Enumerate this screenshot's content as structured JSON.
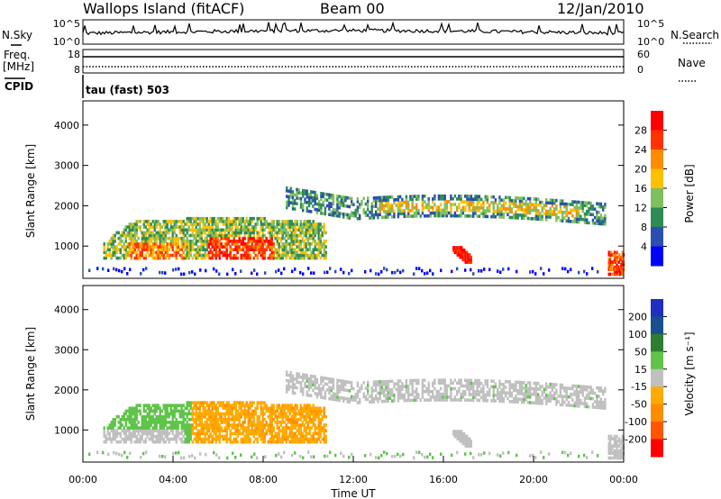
{
  "header": {
    "station": "Wallops Island (fitACF)",
    "beam": "Beam 00",
    "date": "12/Jan/2010"
  },
  "strip_panels": {
    "nsky": {
      "label": "N.Sky",
      "tick_top": "10^5",
      "tick_bottom": "10^0",
      "right_label": "N.Search",
      "right_tick_top": "10^5",
      "right_tick_bottom": "10^0"
    },
    "freq": {
      "label_line1": "Freq.",
      "label_line2": "[MHz]",
      "tick_top": "18",
      "tick_bottom": "8",
      "right_label": "Nave",
      "right_tick_top": "60",
      "right_tick_bottom": "0"
    },
    "cpid": {
      "label": "CPID",
      "value": "tau (fast) 503"
    }
  },
  "colors": {
    "power": [
      "#0000ff",
      "#2a4fb0",
      "#2e8b57",
      "#7fbf5f",
      "#ffc000",
      "#ff8c00",
      "#ff3300",
      "#ff0000"
    ],
    "velocity": [
      "#ff0000",
      "#ff5500",
      "#ff8c00",
      "#ffaa00",
      "#c0c0c0",
      "#5fc44a",
      "#2e7d32",
      "#1a4f8c",
      "#1f2fbf"
    ],
    "ground_scatter": "#c0c0c0"
  },
  "chart_data": [
    {
      "type": "heatmap",
      "name": "power",
      "ylabel": "Slant Range [km]",
      "ylim": [
        200,
        4600
      ],
      "yticks": [
        "1000",
        "2000",
        "3000",
        "4000"
      ],
      "xlim": [
        0,
        24
      ],
      "colorbar": {
        "label": "Power [dB]",
        "range": [
          0,
          32
        ],
        "ticks": [
          "4",
          "8",
          "12",
          "16",
          "20",
          "24",
          "28"
        ]
      },
      "features": [
        {
          "t": [
            0.9,
            10.8
          ],
          "range": [
            700,
            1700
          ],
          "peak_db": 30
        },
        {
          "t": [
            9.0,
            23.2
          ],
          "range": [
            1300,
            2600
          ],
          "peak_db": 16
        },
        {
          "t": [
            16.4,
            17.2
          ],
          "range": [
            600,
            1000
          ],
          "peak_db": 28
        }
      ]
    },
    {
      "type": "heatmap",
      "name": "velocity",
      "ylabel": "Slant Range [km]",
      "ylim": [
        200,
        4600
      ],
      "yticks": [
        "1000",
        "2000",
        "3000",
        "4000"
      ],
      "xlim": [
        0,
        24
      ],
      "xticks": [
        "00:00",
        "04:00",
        "08:00",
        "12:00",
        "16:00",
        "20:00",
        "00:00"
      ],
      "xlabel": "Time UT",
      "colorbar": {
        "label": "Velocity [m s-1]",
        "ticks": [
          "200",
          "100",
          "50",
          "15",
          "-15",
          "-50",
          "-100",
          "-200"
        ]
      },
      "features": [
        {
          "t": [
            0.9,
            4.5
          ],
          "range": [
            700,
            1700
          ],
          "velocity": 40
        },
        {
          "t": [
            5.0,
            10.8
          ],
          "range": [
            800,
            1500
          ],
          "velocity": -40
        },
        {
          "t": [
            9.0,
            23.2
          ],
          "range": [
            1300,
            2600
          ],
          "velocity": 0
        }
      ]
    }
  ]
}
